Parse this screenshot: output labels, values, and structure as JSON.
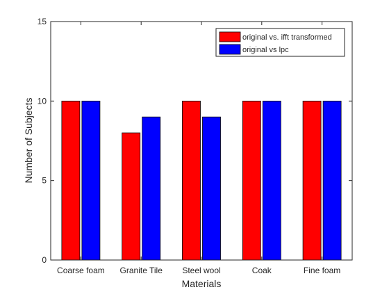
{
  "chart_data": {
    "type": "bar",
    "title": "",
    "xlabel": "Materials",
    "ylabel": "Number of Subjects",
    "ylim": [
      0,
      15
    ],
    "yticks": [
      0,
      5,
      10,
      15
    ],
    "grid": false,
    "legend_position": "top-right",
    "categories": [
      "Coarse foam",
      "Granite Tile",
      "Steel wool",
      "Coak",
      "Fine foam"
    ],
    "series": [
      {
        "name": "original vs. ifft transformed",
        "color": "#ff0000",
        "values": [
          10,
          8,
          10,
          10,
          10
        ]
      },
      {
        "name": "original vs lpc",
        "color": "#0000ff",
        "values": [
          10,
          9,
          9,
          10,
          10
        ]
      }
    ]
  }
}
